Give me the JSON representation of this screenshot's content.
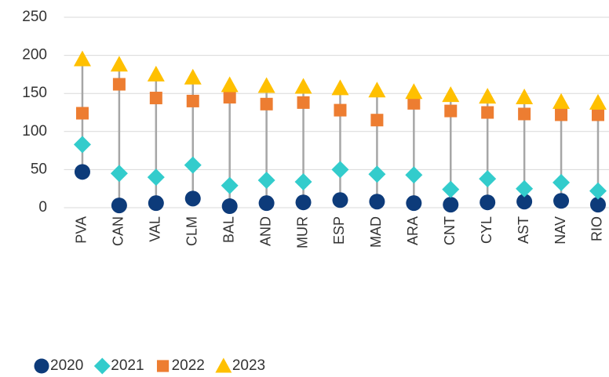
{
  "chart_data": {
    "type": "dot-range",
    "categories": [
      "PVA",
      "CAN",
      "VAL",
      "CLM",
      "BAL",
      "AND",
      "MUR",
      "ESP",
      "MAD",
      "ARA",
      "CNT",
      "CYL",
      "AST",
      "NAV",
      "RIO"
    ],
    "series": [
      {
        "name": "2020",
        "color": "#0d3b7a",
        "marker": "circle",
        "values": [
          47,
          3,
          6,
          12,
          2,
          6,
          7,
          10,
          8,
          6,
          4,
          7,
          8,
          9,
          4
        ]
      },
      {
        "name": "2021",
        "color": "#33cccc",
        "marker": "diamond",
        "values": [
          83,
          45,
          40,
          56,
          29,
          36,
          34,
          50,
          44,
          43,
          24,
          38,
          25,
          33,
          22
        ]
      },
      {
        "name": "2022",
        "color": "#ed7d31",
        "marker": "square",
        "values": [
          124,
          162,
          144,
          140,
          145,
          136,
          138,
          128,
          115,
          137,
          127,
          125,
          123,
          122,
          122
        ]
      },
      {
        "name": "2023",
        "color": "#ffc000",
        "marker": "triangle",
        "values": [
          195,
          188,
          175,
          171,
          161,
          160,
          159,
          157,
          154,
          152,
          148,
          146,
          145,
          139,
          138
        ]
      }
    ],
    "ylim": [
      0,
      250
    ],
    "yticks": [
      0,
      50,
      100,
      150,
      200,
      250
    ],
    "grid": true,
    "legend": "bottom"
  }
}
